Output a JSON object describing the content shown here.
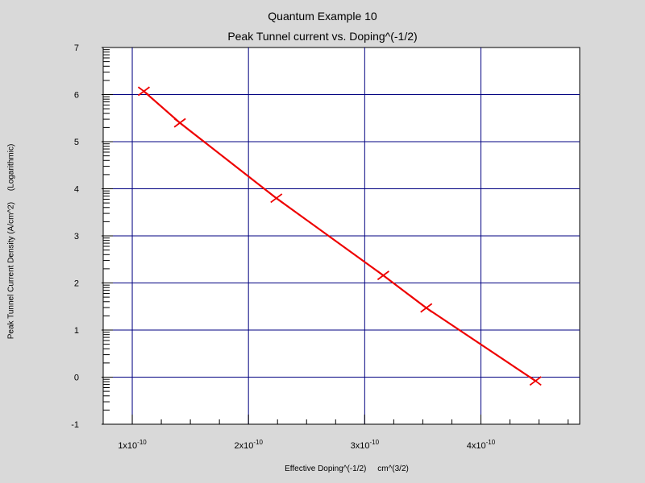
{
  "chart_data": {
    "type": "line",
    "title": "Quantum Example 10",
    "subtitle": "Peak Tunnel current vs.  Doping^(-1/2)",
    "xlabel": "Effective Doping^(-1/2)     cm^(3/2)",
    "ylabel": "Peak Tunnel Current Density (A/cm^2)     (Logarithmic)",
    "xlim": [
      7.5e-11,
      4.85e-10
    ],
    "ylim": [
      -1,
      7
    ],
    "grid": true,
    "x_ticks": [
      {
        "value": 1e-10,
        "mantissa": "1x10",
        "exp": "-10"
      },
      {
        "value": 2e-10,
        "mantissa": "2x10",
        "exp": "-10"
      },
      {
        "value": 3e-10,
        "mantissa": "3x10",
        "exp": "-10"
      },
      {
        "value": 4e-10,
        "mantissa": "4x10",
        "exp": "-10"
      }
    ],
    "y_ticks": [
      {
        "value": -1,
        "label": "-1"
      },
      {
        "value": 0,
        "label": "0"
      },
      {
        "value": 1,
        "label": "1"
      },
      {
        "value": 2,
        "label": "2"
      },
      {
        "value": 3,
        "label": "3"
      },
      {
        "value": 4,
        "label": "4"
      },
      {
        "value": 5,
        "label": "5"
      },
      {
        "value": 6,
        "label": "6"
      },
      {
        "value": 7,
        "label": "7"
      }
    ],
    "series": [
      {
        "color": "#ee0000",
        "marker": "x",
        "x": [
          1.1e-10,
          1.41e-10,
          2.24e-10,
          3.16e-10,
          3.53e-10,
          4.47e-10
        ],
        "y": [
          6.07,
          5.4,
          3.8,
          2.16,
          1.47,
          -0.08
        ]
      }
    ],
    "colors": {
      "background": "#d9d9d9",
      "plot_area": "#ffffff",
      "grid": "#000080",
      "axis": "#000000"
    }
  }
}
